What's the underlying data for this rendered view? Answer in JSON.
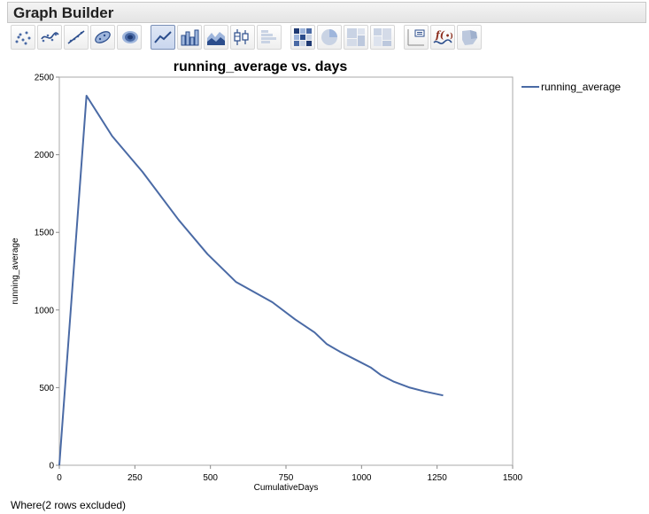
{
  "window": {
    "title": "Graph Builder"
  },
  "toolbar": {
    "items": [
      {
        "name": "points",
        "active": false
      },
      {
        "name": "smoother",
        "active": false
      },
      {
        "name": "line-of-fit",
        "active": false
      },
      {
        "name": "ellipse",
        "active": false
      },
      {
        "name": "contour",
        "active": false
      },
      {
        "name": "line",
        "active": true
      },
      {
        "name": "bar",
        "active": false
      },
      {
        "name": "area",
        "active": false
      },
      {
        "name": "box-plot",
        "active": false
      },
      {
        "name": "histogram",
        "active": false
      },
      {
        "name": "heatmap",
        "active": false
      },
      {
        "name": "pie",
        "active": false
      },
      {
        "name": "treemap",
        "active": false
      },
      {
        "name": "mosaic",
        "active": false
      },
      {
        "name": "caption-box",
        "active": false
      },
      {
        "name": "formula",
        "active": false
      },
      {
        "name": "map-shapes",
        "active": false
      }
    ]
  },
  "colors": {
    "series": "#4a6aa5",
    "axis": "#888888"
  },
  "chart_data": {
    "type": "line",
    "title": "running_average vs. days",
    "xlabel": "CumulativeDays",
    "ylabel": "running_average",
    "xlim": [
      0,
      1500
    ],
    "ylim": [
      0,
      2500
    ],
    "xticks": [
      0,
      250,
      500,
      750,
      1000,
      1250,
      1500
    ],
    "yticks": [
      0,
      500,
      1000,
      1500,
      2000,
      2500
    ],
    "grid": false,
    "legend": "top-right",
    "series": [
      {
        "name": "running_average",
        "x": [
          0,
          90,
          175,
          275,
          395,
          490,
          585,
          705,
          780,
          845,
          885,
          930,
          985,
          1030,
          1065,
          1105,
          1160,
          1210,
          1270
        ],
        "y": [
          0,
          2380,
          2120,
          1890,
          1580,
          1360,
          1180,
          1050,
          940,
          855,
          780,
          730,
          675,
          630,
          580,
          540,
          500,
          475,
          450
        ]
      }
    ]
  },
  "footer": {
    "text": "Where(2 rows excluded)"
  }
}
